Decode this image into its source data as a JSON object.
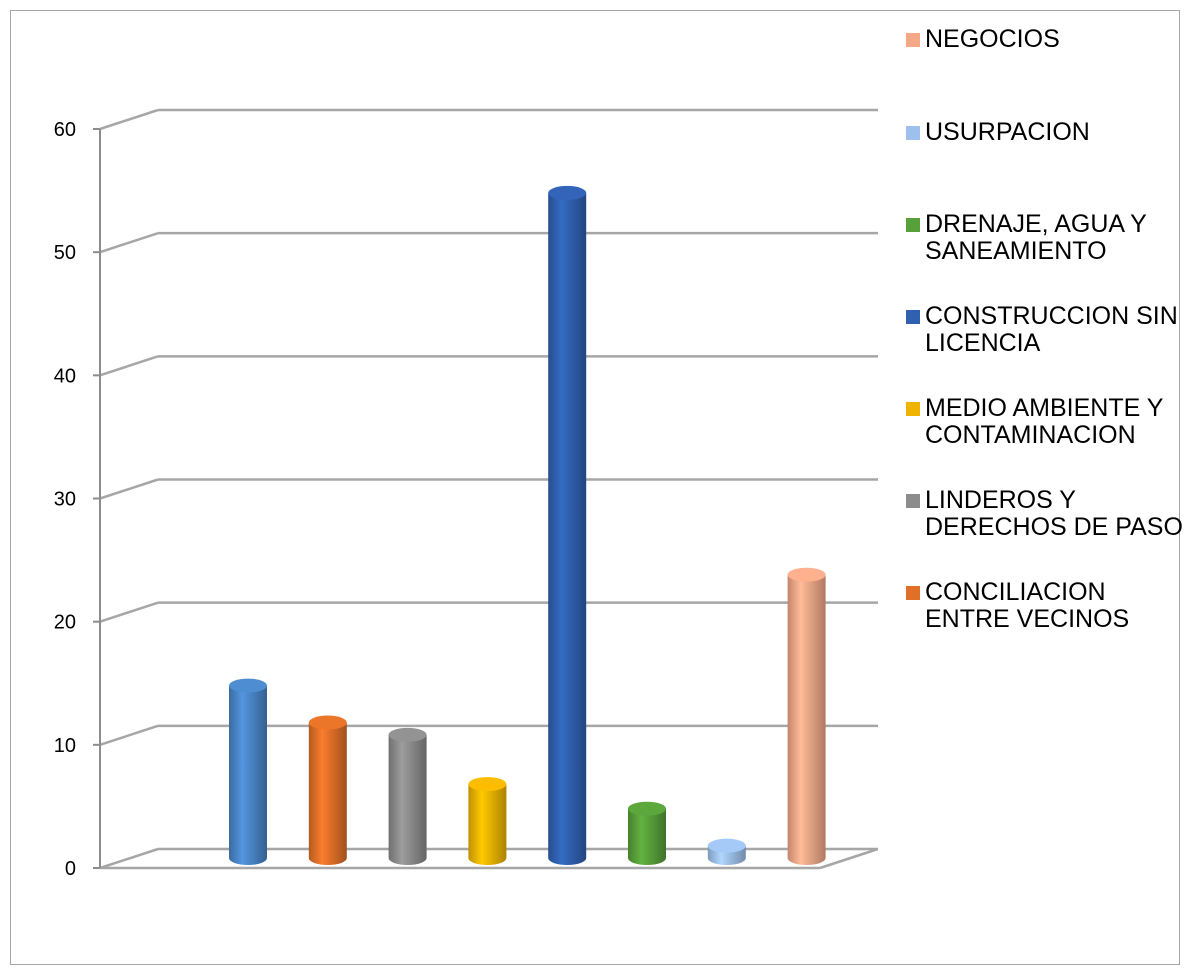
{
  "chart_data": {
    "type": "bar",
    "title": "",
    "xlabel": "",
    "ylabel": "",
    "ylim": [
      0,
      60
    ],
    "yticks": [
      0,
      10,
      20,
      30,
      40,
      50,
      60
    ],
    "ytick_labels": [
      "0",
      "10",
      "20",
      "30",
      "40",
      "50",
      "60"
    ],
    "grid": true,
    "legend_position": "right",
    "series": [
      {
        "name": "",
        "value": 14,
        "color": "#4a86c8"
      },
      {
        "name": "CONCILIACION ENTRE VECINOS",
        "value": 11,
        "color": "#e07028"
      },
      {
        "name": "LINDEROS Y DERECHOS DE PASO",
        "value": 10,
        "color": "#8c8c8c"
      },
      {
        "name": "MEDIO AMBIENTE Y CONTAMINACION",
        "value": 6,
        "color": "#f0b400"
      },
      {
        "name": "CONSTRUCCION SIN LICENCIA",
        "value": 54,
        "color": "#3060b0"
      },
      {
        "name": "DRENAJE, AGUA Y SANEAMIENTO",
        "value": 4,
        "color": "#58a03a"
      },
      {
        "name": "USURPACION",
        "value": 1,
        "color": "#9ec0ec"
      },
      {
        "name": "NEGOCIOS",
        "value": 23,
        "color": "#f4a888"
      }
    ]
  },
  "legend": [
    {
      "label": "NEGOCIOS",
      "color": "#f4a888"
    },
    {
      "label": "USURPACION",
      "color": "#9ec0ec"
    },
    {
      "label": "DRENAJE, AGUA Y SANEAMIENTO",
      "color": "#58a03a"
    },
    {
      "label": "CONSTRUCCION SIN LICENCIA",
      "color": "#3060b0"
    },
    {
      "label": "MEDIO AMBIENTE Y CONTAMINACION",
      "color": "#f0b400"
    },
    {
      "label": "LINDEROS Y DERECHOS DE PASO",
      "color": "#8c8c8c"
    },
    {
      "label": "CONCILIACION ENTRE VECINOS",
      "color": "#e07028"
    }
  ]
}
